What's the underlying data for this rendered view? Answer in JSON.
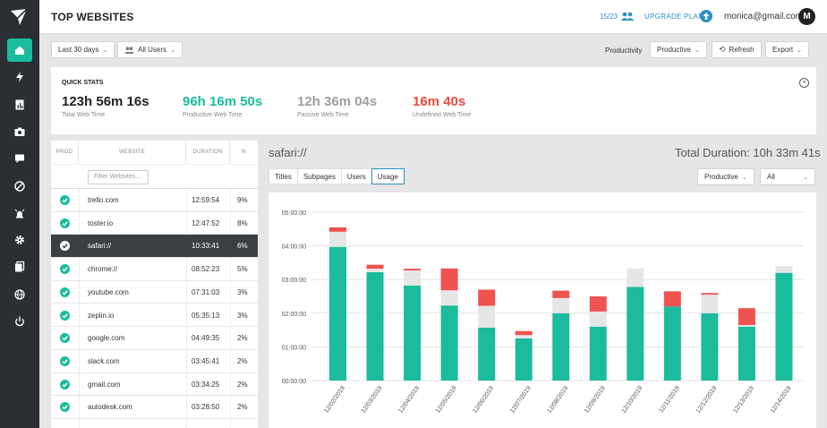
{
  "app": {
    "title": "TOP WEBSITES"
  },
  "header": {
    "seats": "15/23",
    "upgrade": "UPGRADE PLAN",
    "email": "monica@gmail.com",
    "avatar": "M"
  },
  "sidebar": {
    "icons": [
      "home-icon",
      "lightning-icon",
      "report-icon",
      "camera-icon",
      "chat-icon",
      "block-icon",
      "alarm-icon",
      "gear-icon",
      "library-icon",
      "globe-icon",
      "power-icon"
    ]
  },
  "toolbar": {
    "date_range": "Last 30 days",
    "users": "All Users",
    "productivity_label": "Productivity",
    "productivity_value": "Productive",
    "refresh": "Refresh",
    "export": "Export"
  },
  "quick_stats": {
    "title": "QUICK STATS",
    "items": [
      {
        "value": "123h 56m 16s",
        "label": "Total Web Time",
        "color": "#222222"
      },
      {
        "value": "96h 16m 50s",
        "label": "Productive Web Time",
        "color": "#1abc9c"
      },
      {
        "value": "12h 36m 04s",
        "label": "Passive Web Time",
        "color": "#9e9e9e"
      },
      {
        "value": "16m 40s",
        "label": "Undefined Web Time",
        "color": "#e74c3c"
      }
    ]
  },
  "table": {
    "headers": {
      "prod": "PROD",
      "website": "WEBSITE",
      "duration": "DURATION",
      "pct": "%"
    },
    "filter_placeholder": "Filter Websites...",
    "rows": [
      {
        "site": "trello.com",
        "duration": "12:59:54",
        "pct": "9%"
      },
      {
        "site": "toster.io",
        "duration": "12:47:52",
        "pct": "8%"
      },
      {
        "site": "safari://",
        "duration": "10:33:41",
        "pct": "6%"
      },
      {
        "site": "chrome://",
        "duration": "08:52:23",
        "pct": "5%"
      },
      {
        "site": "youtube.com",
        "duration": "07:31:03",
        "pct": "3%"
      },
      {
        "site": "zeplin.io",
        "duration": "05:35:13",
        "pct": "3%"
      },
      {
        "site": "google.com",
        "duration": "04:49:35",
        "pct": "2%"
      },
      {
        "site": "slack.com",
        "duration": "03:45:41",
        "pct": "2%"
      },
      {
        "site": "gmail.com",
        "duration": "03:34:25",
        "pct": "2%"
      },
      {
        "site": "autodesk.com",
        "duration": "03:28:50",
        "pct": "2%"
      }
    ]
  },
  "detail": {
    "title": "safari://",
    "total": "Total Duration: 10h 33m 41s",
    "tabs": [
      "Titles",
      "Subpages",
      "Users",
      "Usage"
    ],
    "filter1": "Productive",
    "filter2": "All"
  },
  "chart_data": {
    "type": "bar",
    "stacked": true,
    "categories": [
      "12/02/2019",
      "12/03/2019",
      "12/04/2019",
      "12/05/2019",
      "12/06/2019",
      "12/07/2019",
      "12/08/2019",
      "12/09/2019",
      "12/10/2019",
      "12/11/2019",
      "12/12/2019",
      "12/13/2019",
      "12/14/2019"
    ],
    "y_ticks": [
      "00:00:00",
      "01:00:00",
      "02:00:00",
      "03:00:00",
      "04:00:00",
      "05:00:00"
    ],
    "ylim": [
      0,
      5
    ],
    "series": [
      {
        "values": [
          3.97,
          3.22,
          2.82,
          2.23,
          1.57,
          1.25,
          2.0,
          1.6,
          2.78,
          2.2,
          2.0,
          1.6,
          3.2
        ],
        "color": "#1abc9c"
      },
      {
        "values": [
          0.45,
          0.1,
          0.45,
          0.45,
          0.65,
          0.1,
          0.45,
          0.45,
          0.55,
          0.0,
          0.55,
          0.05,
          0.2
        ],
        "color": "#e6e6e6"
      },
      {
        "values": [
          0.13,
          0.12,
          0.05,
          0.65,
          0.48,
          0.12,
          0.22,
          0.45,
          0.0,
          0.45,
          0.05,
          0.5,
          0.0
        ],
        "color": "#ef5350"
      }
    ]
  }
}
